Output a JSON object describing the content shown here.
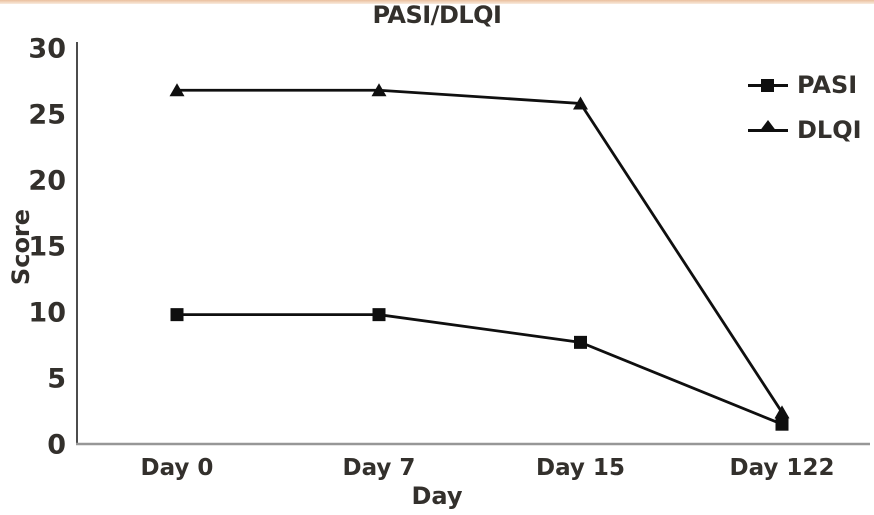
{
  "chart": {
    "accent_top_color": "#eabf9d",
    "accent_bottom_color": "#f9ecdf",
    "text_color": "#33302c",
    "line_color": "#0f0f0f",
    "y_axis_color": "#4c4c4c",
    "x_axis_color": "#979797"
  },
  "chart_data": {
    "type": "line",
    "title": "PASI/DLQI",
    "xlabel": "Day",
    "ylabel": "Score",
    "categories": [
      "Day 0",
      "Day 7",
      "Day 15",
      "Day 122"
    ],
    "series": [
      {
        "name": "PASI",
        "marker": "square",
        "values": [
          9.8,
          9.8,
          7.7,
          1.5
        ]
      },
      {
        "name": "DLQI",
        "marker": "triangle",
        "values": [
          26.8,
          26.8,
          25.8,
          2.4
        ]
      }
    ],
    "yticks": [
      0,
      5,
      10,
      15,
      20,
      25,
      30
    ],
    "ylim": [
      0,
      30
    ],
    "grid": false,
    "legend_position": "top-right"
  }
}
